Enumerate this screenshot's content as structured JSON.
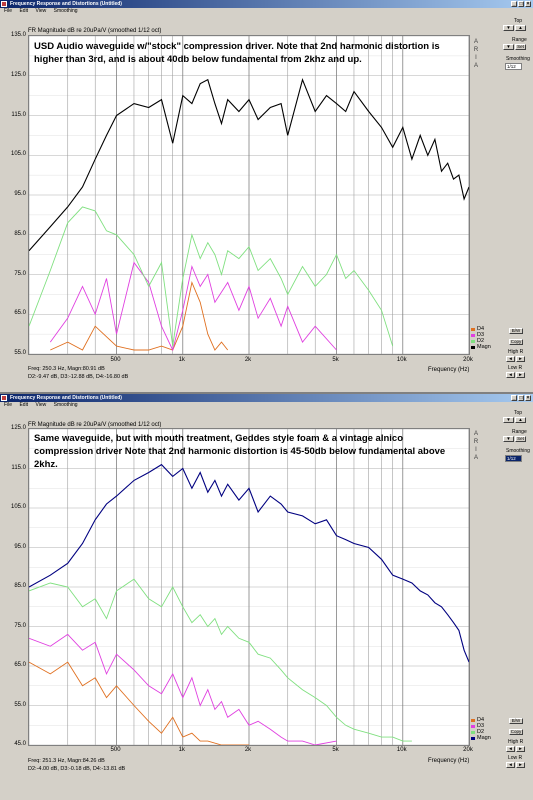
{
  "windows": [
    {
      "title": "Frequency Response and Distortions (Untitled)",
      "menu": [
        "File",
        "Edit",
        "View",
        "Smoothing"
      ],
      "header": "FR Magnitude dB re 20uPa/V (smoothed 1/12 oct)",
      "annotation": "USD Audio waveguide w/\"stock\" compression driver.  Note that 2nd harmonic distortion is higher than 3rd, and is about 40db below fundamental from 2khz and up.",
      "readout_line1": "Freq: 250.3 Hz, Magn:80.91 dB",
      "readout_line2": "D2:-9.47 dB, D3:-12.88 dB, D4:-16.80 dB",
      "xaxis_title": "Frequency (Hz)",
      "panel": {
        "top_label": "Top",
        "range_label": "Range",
        "set_label": "Set",
        "smoothing_label": "Smoothing",
        "smoothing_value": "1/12",
        "bw_label": "B/W",
        "copy_label": "Copy",
        "highr_label": "High R",
        "lowr_label": "Low R"
      },
      "legend": [
        {
          "name": "D4",
          "color": "#e07020"
        },
        {
          "name": "D3",
          "color": "#e040e0"
        },
        {
          "name": "D2",
          "color": "#80e080"
        },
        {
          "name": "Magn",
          "color": "#000000"
        }
      ]
    },
    {
      "title": "Frequency Response and Distortions (Untitled)",
      "menu": [
        "File",
        "Edit",
        "View",
        "Smoothing"
      ],
      "header": "FR Magnitude dB re 20uPa/V (smoothed 1/12 oct)",
      "annotation": "Same waveguide, but with mouth treatment, Geddes style foam & a vintage alnico compression driver   Note that 2nd harmonic distortion is 45-50db below fundamental above 2khz.",
      "readout_line1": "Freq: 251.3 Hz, Magn:84.26 dB",
      "readout_line2": "D2:-4.00 dB, D3:-0.18 dB, D4:-13.81 dB",
      "xaxis_title": "Frequency (Hz)",
      "panel": {
        "top_label": "Top",
        "range_label": "Range",
        "set_label": "Set",
        "smoothing_label": "Smoothing",
        "smoothing_value": "1/12",
        "bw_label": "B/W",
        "copy_label": "Copy",
        "highr_label": "High R",
        "lowr_label": "Low R"
      },
      "legend": [
        {
          "name": "D4",
          "color": "#e07020"
        },
        {
          "name": "D3",
          "color": "#e040e0"
        },
        {
          "name": "D2",
          "color": "#80e080"
        },
        {
          "name": "Magn",
          "color": "#000080"
        }
      ]
    }
  ],
  "chart_data": [
    {
      "type": "line",
      "title": "FR Magnitude dB re 20uPa/V (smoothed 1/12 oct)",
      "xlabel": "Frequency (Hz)",
      "ylabel": "",
      "xscale": "log",
      "xlim": [
        200,
        20000
      ],
      "ylim": [
        55,
        135
      ],
      "yticks": [
        135,
        125,
        115,
        105,
        95,
        85,
        75,
        65,
        55
      ],
      "ytick_labels": [
        "135.0",
        "125.0",
        "115.0",
        "105.0",
        "95.0",
        "85.0",
        "75.0",
        "65.0",
        "55.0"
      ],
      "xticks": [
        500,
        1000,
        2000,
        5000,
        10000,
        20000
      ],
      "xtick_labels": [
        "500",
        "1k",
        "2k",
        "5k",
        "10k",
        "20k"
      ],
      "grid": true,
      "legend_position": "bottom-right",
      "series": [
        {
          "name": "Magn",
          "color": "#000000",
          "x": [
            200,
            250,
            300,
            350,
            400,
            450,
            500,
            600,
            700,
            800,
            900,
            1000,
            1100,
            1200,
            1300,
            1400,
            1500,
            1600,
            1800,
            2000,
            2200,
            2500,
            2800,
            3000,
            3500,
            4000,
            4500,
            5000,
            5500,
            6000,
            7000,
            8000,
            9000,
            10000,
            11000,
            12000,
            13000,
            14000,
            15000,
            16000,
            17000,
            18000,
            19000,
            20000
          ],
          "y": [
            81,
            87,
            92,
            97,
            104,
            110,
            115,
            118,
            117,
            119,
            108,
            120,
            118,
            123,
            124,
            118,
            113,
            119,
            116,
            119,
            114,
            117,
            118,
            110,
            124,
            116,
            120,
            118,
            116,
            121,
            116,
            112,
            107,
            112,
            104,
            110,
            105,
            109,
            101,
            103,
            99,
            100,
            94,
            97
          ]
        },
        {
          "name": "D2",
          "color": "#80e080",
          "x": [
            200,
            250,
            300,
            350,
            400,
            450,
            500,
            600,
            700,
            800,
            900,
            1000,
            1100,
            1200,
            1300,
            1400,
            1500,
            1600,
            1800,
            2000,
            2200,
            2500,
            2800,
            3000,
            3500,
            4000,
            4500,
            5000,
            5500,
            6000,
            7000,
            8000,
            9000
          ],
          "y": [
            62,
            76,
            88,
            92,
            91,
            86,
            85,
            80,
            72,
            78,
            57,
            74,
            85,
            79,
            83,
            80,
            75,
            81,
            79,
            82,
            76,
            79,
            74,
            70,
            77,
            72,
            75,
            80,
            74,
            76,
            71,
            66,
            57
          ]
        },
        {
          "name": "D3",
          "color": "#e040e0",
          "x": [
            250,
            300,
            350,
            400,
            450,
            500,
            600,
            700,
            800,
            900,
            1000,
            1100,
            1200,
            1300,
            1400,
            1600,
            1800,
            2000,
            2200,
            2500,
            2800,
            3000,
            3500,
            4000,
            5000
          ],
          "y": [
            58,
            64,
            72,
            65,
            74,
            60,
            78,
            73,
            62,
            56,
            66,
            77,
            72,
            75,
            68,
            73,
            66,
            72,
            64,
            69,
            62,
            67,
            58,
            62,
            56
          ]
        },
        {
          "name": "D4",
          "color": "#e07020",
          "x": [
            250,
            300,
            350,
            400,
            500,
            600,
            700,
            800,
            900,
            1000,
            1100,
            1200,
            1300,
            1400,
            1500,
            1600
          ],
          "y": [
            56,
            58,
            56,
            62,
            57,
            56,
            56,
            57,
            56,
            62,
            73,
            68,
            60,
            56,
            58,
            56
          ]
        }
      ]
    },
    {
      "type": "line",
      "title": "FR Magnitude dB re 20uPa/V (smoothed 1/12 oct)",
      "xlabel": "Frequency (Hz)",
      "ylabel": "",
      "xscale": "log",
      "xlim": [
        200,
        20000
      ],
      "ylim": [
        45,
        125
      ],
      "yticks": [
        125,
        115,
        105,
        95,
        85,
        75,
        65,
        55,
        45
      ],
      "ytick_labels": [
        "125.0",
        "115.0",
        "105.0",
        "95.0",
        "85.0",
        "75.0",
        "65.0",
        "55.0",
        "45.0"
      ],
      "xticks": [
        500,
        1000,
        2000,
        5000,
        10000,
        20000
      ],
      "xtick_labels": [
        "500",
        "1k",
        "2k",
        "5k",
        "10k",
        "20k"
      ],
      "grid": true,
      "legend_position": "bottom-right",
      "series": [
        {
          "name": "Magn",
          "color": "#000080",
          "x": [
            200,
            250,
            300,
            350,
            400,
            450,
            500,
            600,
            700,
            800,
            900,
            1000,
            1100,
            1200,
            1300,
            1400,
            1500,
            1600,
            1800,
            2000,
            2200,
            2500,
            2800,
            3000,
            3500,
            4000,
            4500,
            5000,
            5500,
            6000,
            7000,
            8000,
            9000,
            10000,
            11000,
            12000,
            13000,
            14000,
            15000,
            16000,
            17000,
            18000,
            19000,
            20000
          ],
          "y": [
            85,
            88,
            91,
            96,
            102,
            106,
            108,
            112,
            114,
            116,
            113,
            115,
            110,
            114,
            109,
            112,
            108,
            111,
            107,
            110,
            104,
            108,
            106,
            104,
            103,
            101,
            102,
            98,
            97,
            96,
            95,
            92,
            88,
            87,
            86,
            84,
            83,
            81,
            80,
            78,
            76,
            74,
            69,
            66
          ]
        },
        {
          "name": "D2",
          "color": "#80e080",
          "x": [
            200,
            250,
            300,
            350,
            400,
            450,
            500,
            600,
            700,
            800,
            900,
            1000,
            1100,
            1200,
            1300,
            1400,
            1500,
            1600,
            1800,
            2000,
            2200,
            2500,
            2800,
            3000,
            3500,
            4000,
            4500,
            5000,
            5500,
            6000,
            7000,
            8000,
            9000,
            10000,
            11000
          ],
          "y": [
            84,
            86,
            85,
            80,
            82,
            77,
            84,
            87,
            82,
            80,
            85,
            80,
            76,
            78,
            75,
            77,
            73,
            75,
            72,
            71,
            68,
            67,
            64,
            62,
            59,
            57,
            55,
            52,
            50,
            49,
            48,
            47,
            47,
            46,
            46
          ]
        },
        {
          "name": "D3",
          "color": "#e040e0",
          "x": [
            200,
            250,
            300,
            350,
            400,
            450,
            500,
            600,
            700,
            800,
            900,
            1000,
            1100,
            1200,
            1300,
            1400,
            1500,
            1600,
            1800,
            2000,
            2200,
            2500,
            2800,
            3000,
            3500,
            4000,
            5000
          ],
          "y": [
            72,
            70,
            73,
            69,
            71,
            63,
            68,
            64,
            60,
            58,
            63,
            57,
            62,
            55,
            59,
            54,
            56,
            52,
            54,
            50,
            51,
            49,
            47,
            46,
            46,
            45,
            46
          ]
        },
        {
          "name": "D4",
          "color": "#e07020",
          "x": [
            200,
            250,
            300,
            350,
            400,
            450,
            500,
            600,
            700,
            800,
            900,
            1000,
            1100,
            1200,
            1300,
            1500,
            2000
          ],
          "y": [
            66,
            63,
            66,
            60,
            62,
            57,
            60,
            55,
            51,
            48,
            52,
            47,
            48,
            46,
            46,
            45,
            45
          ]
        }
      ]
    }
  ]
}
